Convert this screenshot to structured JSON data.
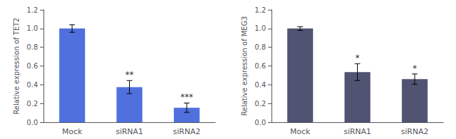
{
  "chart_data": [
    {
      "type": "bar",
      "categories": [
        "Mock",
        "siRNA1",
        "siRNA2"
      ],
      "values": [
        1.0,
        0.375,
        0.155
      ],
      "errors": [
        0.04,
        0.07,
        0.05
      ],
      "annotations": [
        {
          "category": "siRNA1",
          "text": "**"
        },
        {
          "category": "siRNA2",
          "text": "***"
        }
      ],
      "ylabel": "Relative expression of TET2",
      "ylim": [
        0,
        1.2
      ],
      "yticks": [
        {
          "value": 0.0,
          "label": "0.0"
        },
        0.2,
        0.4,
        0.6,
        0.8,
        {
          "value": 1.0,
          "label": "1.0"
        },
        1.2
      ],
      "grid": false
    },
    {
      "type": "bar",
      "categories": [
        "Mock",
        "siRNA1",
        "siRNA2"
      ],
      "values": [
        1.0,
        0.535,
        0.46
      ],
      "errors": [
        0.02,
        0.09,
        0.055
      ],
      "annotations": [
        {
          "category": "siRNA1",
          "text": "*"
        },
        {
          "category": "siRNA2",
          "text": "*"
        }
      ],
      "ylabel": "Relative expression of MEG3",
      "ylim": [
        0,
        1.2
      ],
      "yticks": [
        {
          "value": 0.0,
          "label": "0.0"
        },
        0.2,
        0.4,
        0.6,
        0.8,
        {
          "value": 1.0,
          "label": "1.0"
        },
        1.2
      ],
      "grid": false
    }
  ]
}
